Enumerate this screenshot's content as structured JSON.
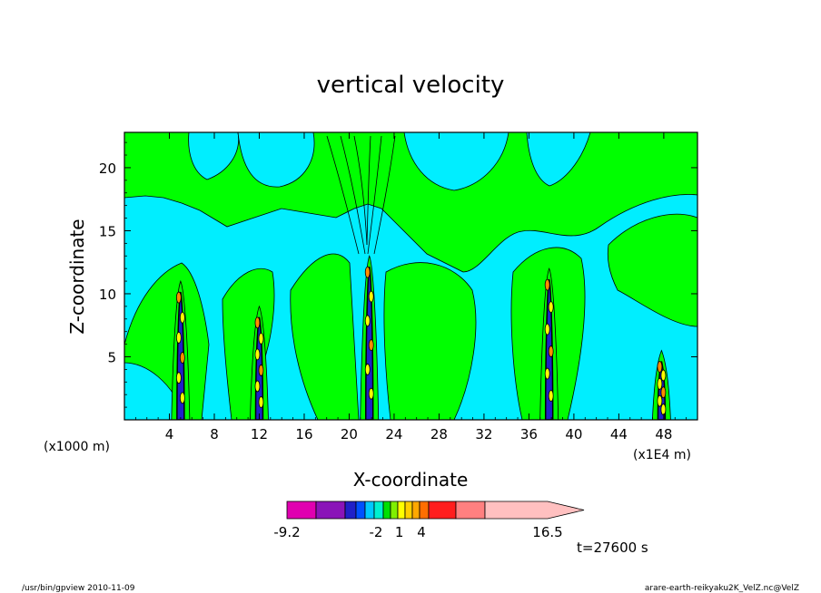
{
  "chart_data": {
    "type": "heatmap",
    "title": "vertical velocity",
    "xlabel": "X-coordinate",
    "ylabel": "Z-coordinate",
    "x_unit_left": "(x1000 m)",
    "x_unit_right": "(x1E4 m)",
    "xlim": [
      0,
      51
    ],
    "ylim": [
      0,
      22.8
    ],
    "x_ticks": [
      "4",
      "8",
      "12",
      "16",
      "20",
      "24",
      "28",
      "32",
      "36",
      "40",
      "44",
      "48"
    ],
    "y_ticks": [
      "5",
      "10",
      "15",
      "20"
    ],
    "x_tick_values": [
      4,
      8,
      12,
      16,
      20,
      24,
      28,
      32,
      36,
      40,
      44,
      48
    ],
    "y_tick_values": [
      5,
      10,
      15,
      20
    ],
    "colorbar": {
      "labels": [
        "-9.2",
        "-2",
        "1",
        "4",
        "16.5"
      ],
      "label_levels": [
        -9.2,
        -2,
        1,
        4,
        16.5
      ],
      "levels": [
        -9.2,
        -7.2,
        -5.2,
        -4.2,
        -3.2,
        -2.2,
        -1.2,
        -0.2,
        0.8,
        1.8,
        2.8,
        3.8,
        4.8,
        6.8,
        9.8,
        16.5
      ],
      "colors": [
        "#e000b0",
        "#8a14b8",
        "#2020c8",
        "#0050ff",
        "#00c8ff",
        "#00f0d0",
        "#00e000",
        "#80f000",
        "#ffff00",
        "#ffd000",
        "#ffa800",
        "#ff6e00",
        "#ff1e1e",
        "#ff8080",
        "#ffc0c0"
      ]
    },
    "field_colors": {
      "positive": "#00ff00",
      "negative": "#00eeff",
      "strong_up": "#ff8c00",
      "strong_down": "#2020c8"
    },
    "time_label": "t=27600 s",
    "footer_left": "/usr/bin/gpview   2010-11-09",
    "footer_right": "arare-earth-reikyaku2K_VelZ.nc@VelZ",
    "updrafts": [
      {
        "x": 5,
        "top": 11
      },
      {
        "x": 12,
        "top": 9
      },
      {
        "x": 21.8,
        "top": 13
      },
      {
        "x": 37.8,
        "top": 12
      },
      {
        "x": 47.8,
        "top": 5.5
      }
    ]
  }
}
